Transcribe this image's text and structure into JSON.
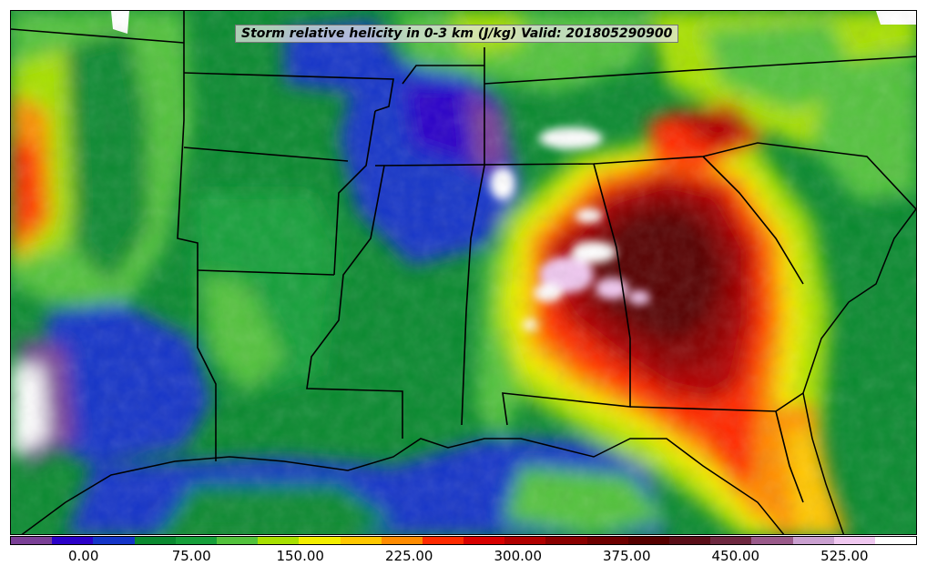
{
  "title": "Storm relative helicity in 0-3 km (J/kg) Valid: 201805290900",
  "colorbar": {
    "colors": [
      "#7a3f96",
      "#2b00c8",
      "#1435c8",
      "#0a8a30",
      "#16a03a",
      "#52c23c",
      "#a8e000",
      "#f4ef00",
      "#ffc800",
      "#ff8c00",
      "#ff2a00",
      "#d80000",
      "#b00000",
      "#8a0000",
      "#6e0000",
      "#560000",
      "#5a0e18",
      "#6e2840",
      "#9a5a8a",
      "#caa0d0",
      "#f0c8f0",
      "#ffffff"
    ],
    "ticks": [
      "0.00",
      "75.00",
      "150.00",
      "225.00",
      "300.00",
      "375.00",
      "450.00",
      "525.00"
    ],
    "tick_fractions": [
      0.081,
      0.2,
      0.32,
      0.44,
      0.56,
      0.68,
      0.8,
      0.92
    ]
  },
  "field_colors": {
    "background_green": "#0a8a30",
    "blue": "#1435c8",
    "purple": "#7a3f96",
    "lightgreen": "#52c23c",
    "yellow": "#f4ef00",
    "orange": "#ff8c00",
    "red": "#ff2a00",
    "darkred": "#8a0000",
    "maroon": "#560000",
    "pink": "#f0c8f0",
    "white": "#ffffff"
  }
}
